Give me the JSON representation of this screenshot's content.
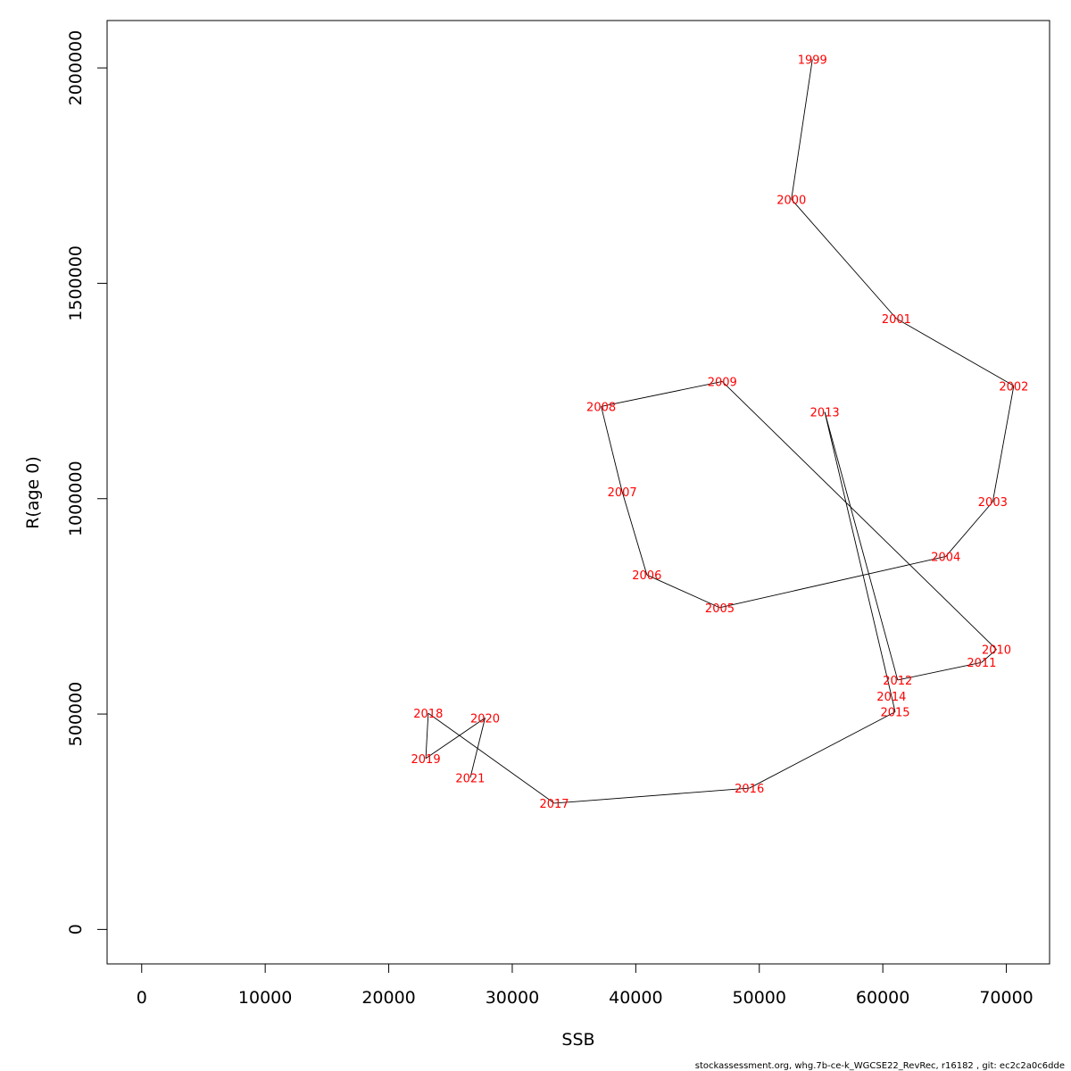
{
  "chart_data": {
    "type": "scatter",
    "xlabel": "SSB",
    "ylabel": "R(age 0)",
    "xlim": [
      -2800,
      73500
    ],
    "ylim": [
      -80000,
      2110000
    ],
    "x_ticks": [
      0,
      10000,
      20000,
      30000,
      40000,
      50000,
      60000,
      70000
    ],
    "x_tick_labels": [
      "0",
      "10000",
      "20000",
      "30000",
      "40000",
      "50000",
      "60000",
      "70000"
    ],
    "y_ticks": [
      0,
      500000,
      1000000,
      1500000,
      2000000
    ],
    "y_tick_labels": [
      "0",
      "500000",
      "1000000",
      "1500000",
      "2000000"
    ],
    "grid": false,
    "points": [
      {
        "label": "1999",
        "x": 54300,
        "y": 2020000
      },
      {
        "label": "2000",
        "x": 52600,
        "y": 1695000
      },
      {
        "label": "2001",
        "x": 61100,
        "y": 1418000
      },
      {
        "label": "2002",
        "x": 70600,
        "y": 1262000
      },
      {
        "label": "2003",
        "x": 68900,
        "y": 993000
      },
      {
        "label": "2004",
        "x": 65100,
        "y": 866000
      },
      {
        "label": "2005",
        "x": 46800,
        "y": 747000
      },
      {
        "label": "2006",
        "x": 40900,
        "y": 823000
      },
      {
        "label": "2007",
        "x": 38900,
        "y": 1016000
      },
      {
        "label": "2008",
        "x": 37200,
        "y": 1214000
      },
      {
        "label": "2009",
        "x": 47000,
        "y": 1272000
      },
      {
        "label": "2010",
        "x": 69200,
        "y": 650000
      },
      {
        "label": "2011",
        "x": 68000,
        "y": 620000
      },
      {
        "label": "2012",
        "x": 61200,
        "y": 579000
      },
      {
        "label": "2013",
        "x": 55300,
        "y": 1201000
      },
      {
        "label": "2014",
        "x": 60700,
        "y": 542000
      },
      {
        "label": "2015",
        "x": 61000,
        "y": 505000
      },
      {
        "label": "2016",
        "x": 49200,
        "y": 328000
      },
      {
        "label": "2017",
        "x": 33400,
        "y": 293000
      },
      {
        "label": "2018",
        "x": 23200,
        "y": 502000
      },
      {
        "label": "2019",
        "x": 23000,
        "y": 397000
      },
      {
        "label": "2020",
        "x": 27800,
        "y": 491000
      },
      {
        "label": "2021",
        "x": 26600,
        "y": 352000
      }
    ]
  },
  "footer": "stockassessment.org, whg.7b-ce-k_WGCSE22_RevRec, r16182 , git: ec2c2a0c6dde"
}
